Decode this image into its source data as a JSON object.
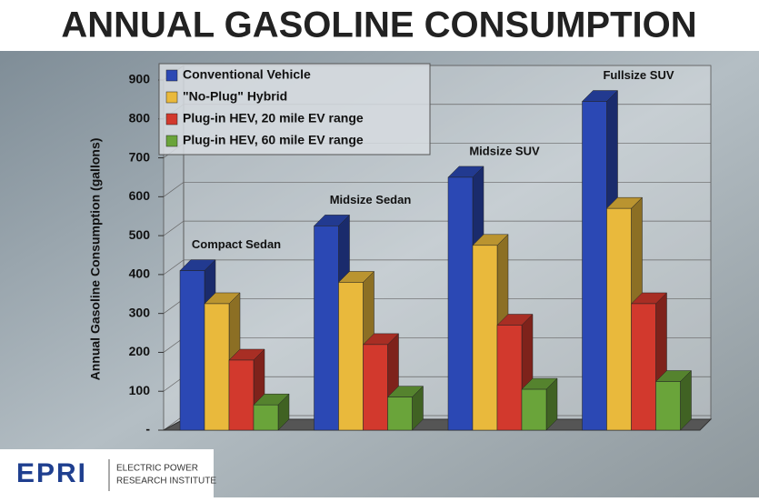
{
  "chart_data": {
    "type": "bar3d",
    "title": "ANNUAL GASOLINE CONSUMPTION",
    "y_label": "Annual Gasoline Consumption (gallons)",
    "categories": [
      "Compact Sedan",
      "Midsize Sedan",
      "Midsize SUV",
      "Fullsize SUV"
    ],
    "series": [
      {
        "name": "Conventional Vehicle",
        "color": "#2b48b4",
        "values": [
          410,
          525,
          650,
          845
        ]
      },
      {
        "name": "\"No-Plug\" Hybrid",
        "color": "#e9b93c",
        "values": [
          325,
          380,
          475,
          570
        ]
      },
      {
        "name": "Plug-in HEV, 20 mile EV range",
        "color": "#d2392d",
        "values": [
          180,
          220,
          270,
          325
        ]
      },
      {
        "name": "Plug-in HEV, 60 mile EV range",
        "color": "#6aa43a",
        "values": [
          65,
          85,
          105,
          125
        ]
      }
    ],
    "ylim": [
      0,
      900
    ],
    "yticks": [
      {
        "value": 0,
        "label": "-"
      },
      100,
      200,
      300,
      400,
      500,
      600,
      700,
      800,
      900
    ],
    "grid": true,
    "legend": "top-left"
  },
  "logo": {
    "mark": "EPRI",
    "lines": [
      "ELECTRIC POWER",
      "RESEARCH INSTITUTE"
    ]
  }
}
